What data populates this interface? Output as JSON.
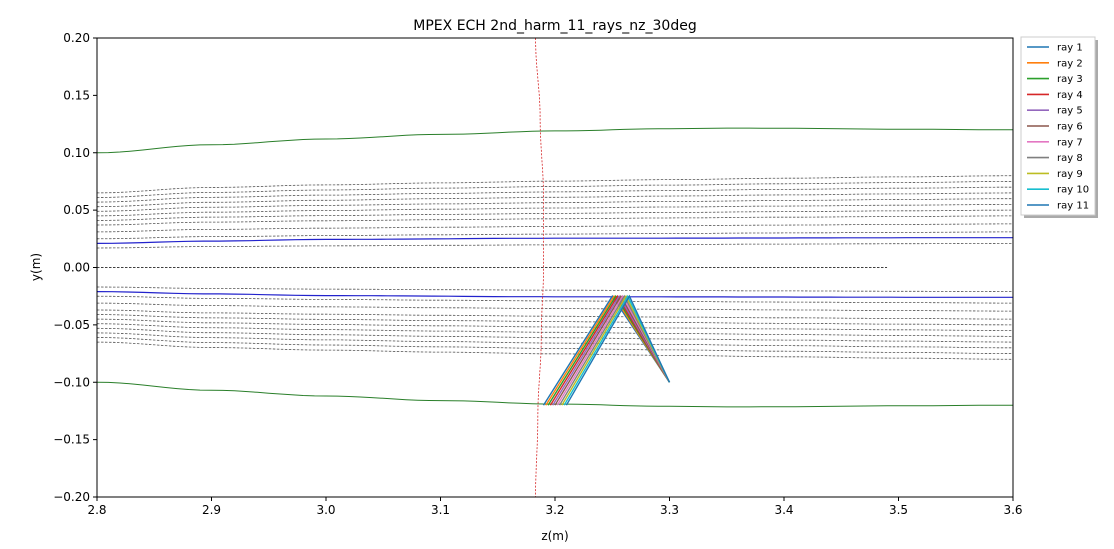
{
  "chart_data": {
    "type": "line",
    "title": "MPEX ECH  2nd_harm_11_rays_nz_30deg",
    "xlabel": "z(m)",
    "ylabel": "y(m)",
    "xlim": [
      2.8,
      3.6
    ],
    "ylim": [
      -0.2,
      0.2
    ],
    "xticks": [
      "2.8",
      "2.9",
      "3.0",
      "3.1",
      "3.2",
      "3.3",
      "3.4",
      "3.5",
      "3.6"
    ],
    "yticks": [
      "0.20",
      "0.15",
      "0.10",
      "0.05",
      "0.00",
      "−0.05",
      "−0.10",
      "−0.15",
      "−0.20"
    ],
    "legend_position": "outside-right-top",
    "grid": false,
    "boundary_curves": {
      "color": "#2a7f2a",
      "upper": {
        "x": [
          2.8,
          2.9,
          3.0,
          3.1,
          3.2,
          3.3,
          3.36,
          3.4,
          3.5,
          3.6
        ],
        "y": [
          0.1,
          0.107,
          0.112,
          0.116,
          0.119,
          0.121,
          0.1215,
          0.1213,
          0.1205,
          0.12
        ]
      },
      "lower": {
        "x": [
          2.8,
          2.9,
          3.0,
          3.1,
          3.2,
          3.3,
          3.36,
          3.4,
          3.5,
          3.6
        ],
        "y": [
          -0.1,
          -0.107,
          -0.112,
          -0.116,
          -0.119,
          -0.121,
          -0.1215,
          -0.1213,
          -0.1205,
          -0.12
        ]
      }
    },
    "flux_surfaces": {
      "color": "#555555",
      "x": [
        2.8,
        2.9,
        3.0,
        3.1,
        3.2,
        3.3,
        3.4,
        3.5,
        3.6
      ],
      "upper_offsets": [
        0.065,
        0.061,
        0.057,
        0.053,
        0.049,
        0.045,
        0.041,
        0.037,
        0.031,
        0.025,
        0.017
      ],
      "upper_end": [
        0.08,
        0.075,
        0.07,
        0.065,
        0.06,
        0.055,
        0.05,
        0.045,
        0.038,
        0.031,
        0.021
      ],
      "axis_line": {
        "x": [
          2.8,
          3.49
        ],
        "y": [
          0.0,
          0.0
        ],
        "color": "#000000"
      }
    },
    "blue_surfaces": {
      "color": "#2222cc",
      "upper": {
        "x": [
          2.8,
          2.9,
          3.0,
          3.2,
          3.6
        ],
        "y": [
          0.021,
          0.023,
          0.0245,
          0.0255,
          0.026
        ]
      },
      "lower": {
        "x": [
          2.8,
          2.9,
          3.0,
          3.2,
          3.6
        ],
        "y": [
          -0.021,
          -0.023,
          -0.0245,
          -0.0255,
          -0.026
        ]
      }
    },
    "resonance": {
      "color": "#d62728",
      "x": [
        3.183,
        3.187,
        3.19,
        3.19,
        3.188,
        3.185,
        3.183
      ],
      "y": [
        0.2,
        0.13,
        0.06,
        0.0,
        -0.06,
        -0.13,
        -0.2
      ]
    },
    "series": [
      {
        "name": "ray 1",
        "color": "#1f77b4",
        "x": [
          3.19,
          3.25,
          3.3
        ],
        "y": [
          -0.12,
          -0.025,
          -0.1
        ]
      },
      {
        "name": "ray 2",
        "color": "#ff7f0e",
        "x": [
          3.192,
          3.2515,
          3.3
        ],
        "y": [
          -0.12,
          -0.025,
          -0.1
        ]
      },
      {
        "name": "ray 3",
        "color": "#2ca02c",
        "x": [
          3.194,
          3.253,
          3.3
        ],
        "y": [
          -0.12,
          -0.025,
          -0.1
        ]
      },
      {
        "name": "ray 4",
        "color": "#d62728",
        "x": [
          3.196,
          3.2545,
          3.3
        ],
        "y": [
          -0.12,
          -0.025,
          -0.1
        ]
      },
      {
        "name": "ray 5",
        "color": "#9467bd",
        "x": [
          3.198,
          3.256,
          3.3
        ],
        "y": [
          -0.12,
          -0.025,
          -0.1
        ]
      },
      {
        "name": "ray 6",
        "color": "#8c564b",
        "x": [
          3.2,
          3.2575,
          3.3
        ],
        "y": [
          -0.12,
          -0.025,
          -0.1
        ]
      },
      {
        "name": "ray 7",
        "color": "#e377c2",
        "x": [
          3.202,
          3.259,
          3.3
        ],
        "y": [
          -0.12,
          -0.025,
          -0.1
        ]
      },
      {
        "name": "ray 8",
        "color": "#7f7f7f",
        "x": [
          3.204,
          3.2605,
          3.3
        ],
        "y": [
          -0.12,
          -0.025,
          -0.1
        ]
      },
      {
        "name": "ray 9",
        "color": "#bcbd22",
        "x": [
          3.206,
          3.262,
          3.3
        ],
        "y": [
          -0.12,
          -0.025,
          -0.1
        ]
      },
      {
        "name": "ray 10",
        "color": "#17becf",
        "x": [
          3.208,
          3.2635,
          3.3
        ],
        "y": [
          -0.12,
          -0.025,
          -0.1
        ]
      },
      {
        "name": "ray 11",
        "color": "#1f77b4",
        "x": [
          3.21,
          3.265,
          3.3
        ],
        "y": [
          -0.12,
          -0.025,
          -0.1
        ]
      }
    ]
  }
}
